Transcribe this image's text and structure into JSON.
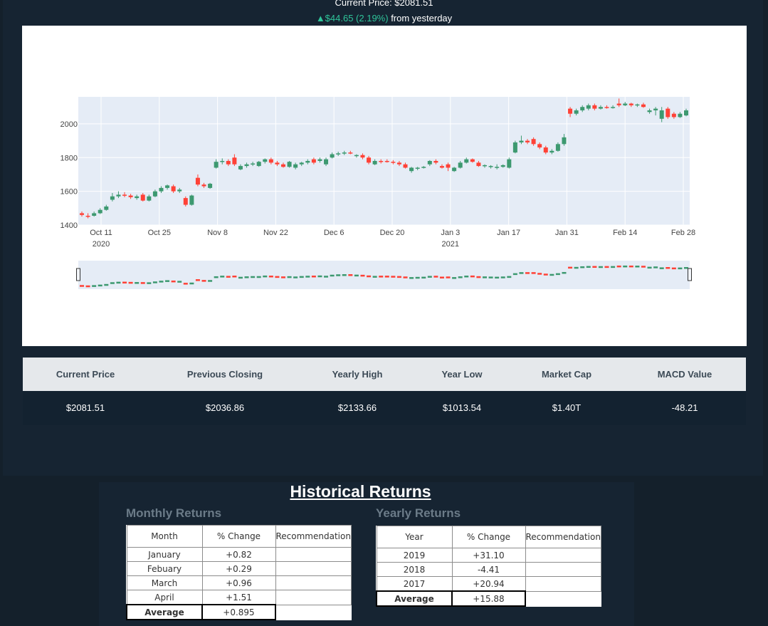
{
  "header": {
    "title": "Current Price: $2081.51",
    "change_value": "▲$44.65 (2.19%)",
    "change_suffix": " from yesterday",
    "colors": {
      "up": "#2fc49a",
      "increasing": "#3d9970",
      "decreasing": "#ff4136"
    }
  },
  "chart_data": {
    "type": "candlestick",
    "ylim": [
      1400,
      2160
    ],
    "yticks": [
      "1400",
      "1600",
      "1800",
      "2000"
    ],
    "xticks": [
      {
        "label": "Oct 11",
        "sub": "2020"
      },
      {
        "label": "Oct 25",
        "sub": ""
      },
      {
        "label": "Nov 8",
        "sub": ""
      },
      {
        "label": "Nov 22",
        "sub": ""
      },
      {
        "label": "Dec 6",
        "sub": ""
      },
      {
        "label": "Dec 20",
        "sub": ""
      },
      {
        "label": "Jan 3",
        "sub": "2021"
      },
      {
        "label": "Jan 17",
        "sub": ""
      },
      {
        "label": "Jan 31",
        "sub": ""
      },
      {
        "label": "Feb 14",
        "sub": ""
      },
      {
        "label": "Feb 28",
        "sub": ""
      }
    ],
    "candles": [
      [
        1470,
        1460,
        1480,
        1450
      ],
      [
        1455,
        1450,
        1470,
        1440
      ],
      [
        1455,
        1470,
        1480,
        1450
      ],
      [
        1470,
        1490,
        1500,
        1465
      ],
      [
        1490,
        1510,
        1520,
        1485
      ],
      [
        1550,
        1570,
        1590,
        1540
      ],
      [
        1570,
        1580,
        1600,
        1560
      ],
      [
        1580,
        1575,
        1595,
        1565
      ],
      [
        1575,
        1565,
        1585,
        1555
      ],
      [
        1560,
        1570,
        1580,
        1550
      ],
      [
        1580,
        1545,
        1590,
        1540
      ],
      [
        1545,
        1570,
        1580,
        1540
      ],
      [
        1570,
        1600,
        1610,
        1565
      ],
      [
        1600,
        1620,
        1630,
        1590
      ],
      [
        1620,
        1635,
        1640,
        1610
      ],
      [
        1630,
        1600,
        1640,
        1590
      ],
      [
        1600,
        1610,
        1620,
        1590
      ],
      [
        1560,
        1520,
        1570,
        1510
      ],
      [
        1520,
        1575,
        1580,
        1515
      ],
      [
        1680,
        1640,
        1700,
        1630
      ],
      [
        1640,
        1630,
        1650,
        1620
      ],
      [
        1620,
        1645,
        1650,
        1615
      ],
      [
        1740,
        1775,
        1790,
        1735
      ],
      [
        1775,
        1780,
        1795,
        1760
      ],
      [
        1780,
        1760,
        1790,
        1750
      ],
      [
        1800,
        1760,
        1820,
        1750
      ],
      [
        1730,
        1750,
        1760,
        1725
      ],
      [
        1750,
        1760,
        1770,
        1740
      ],
      [
        1760,
        1765,
        1775,
        1750
      ],
      [
        1750,
        1775,
        1780,
        1745
      ],
      [
        1775,
        1790,
        1795,
        1765
      ],
      [
        1790,
        1770,
        1800,
        1760
      ],
      [
        1770,
        1760,
        1780,
        1750
      ],
      [
        1760,
        1745,
        1770,
        1740
      ],
      [
        1745,
        1775,
        1780,
        1740
      ],
      [
        1740,
        1760,
        1770,
        1730
      ],
      [
        1760,
        1770,
        1775,
        1750
      ],
      [
        1770,
        1780,
        1790,
        1760
      ],
      [
        1790,
        1770,
        1800,
        1760
      ],
      [
        1780,
        1790,
        1800,
        1770
      ],
      [
        1760,
        1790,
        1800,
        1750
      ],
      [
        1800,
        1820,
        1830,
        1795
      ],
      [
        1820,
        1825,
        1835,
        1810
      ],
      [
        1825,
        1830,
        1840,
        1815
      ],
      [
        1830,
        1825,
        1840,
        1820
      ],
      [
        1810,
        1815,
        1820,
        1800
      ],
      [
        1815,
        1800,
        1825,
        1790
      ],
      [
        1800,
        1770,
        1810,
        1760
      ],
      [
        1760,
        1780,
        1790,
        1755
      ],
      [
        1780,
        1775,
        1790,
        1765
      ],
      [
        1780,
        1775,
        1790,
        1770
      ],
      [
        1775,
        1770,
        1785,
        1760
      ],
      [
        1770,
        1760,
        1780,
        1750
      ],
      [
        1760,
        1740,
        1770,
        1735
      ],
      [
        1720,
        1740,
        1745,
        1710
      ],
      [
        1735,
        1740,
        1745,
        1725
      ],
      [
        1740,
        1745,
        1750,
        1735
      ],
      [
        1760,
        1780,
        1785,
        1750
      ],
      [
        1780,
        1770,
        1790,
        1760
      ],
      [
        1750,
        1740,
        1760,
        1735
      ],
      [
        1760,
        1740,
        1770,
        1720
      ],
      [
        1720,
        1740,
        1745,
        1715
      ],
      [
        1740,
        1770,
        1780,
        1735
      ],
      [
        1770,
        1790,
        1800,
        1765
      ],
      [
        1790,
        1775,
        1795,
        1770
      ],
      [
        1770,
        1750,
        1780,
        1745
      ],
      [
        1750,
        1755,
        1760,
        1740
      ],
      [
        1745,
        1750,
        1755,
        1735
      ],
      [
        1740,
        1745,
        1760,
        1730
      ],
      [
        1745,
        1755,
        1760,
        1740
      ],
      [
        1740,
        1790,
        1800,
        1735
      ],
      [
        1830,
        1890,
        1900,
        1825
      ],
      [
        1890,
        1900,
        1930,
        1880
      ],
      [
        1900,
        1890,
        1910,
        1880
      ],
      [
        1910,
        1880,
        1920,
        1870
      ],
      [
        1880,
        1860,
        1890,
        1850
      ],
      [
        1860,
        1830,
        1870,
        1820
      ],
      [
        1830,
        1840,
        1850,
        1820
      ],
      [
        1840,
        1880,
        1890,
        1835
      ],
      [
        1880,
        1920,
        1940,
        1870
      ],
      [
        2090,
        2060,
        2100,
        2040
      ],
      [
        2060,
        2080,
        2090,
        2050
      ],
      [
        2080,
        2100,
        2110,
        2070
      ],
      [
        2090,
        2110,
        2120,
        2080
      ],
      [
        2110,
        2090,
        2120,
        2080
      ],
      [
        2090,
        2100,
        2110,
        2085
      ],
      [
        2100,
        2095,
        2110,
        2090
      ],
      [
        2095,
        2100,
        2110,
        2090
      ],
      [
        2120,
        2110,
        2150,
        2100
      ],
      [
        2110,
        2120,
        2130,
        2105
      ],
      [
        2120,
        2110,
        2125,
        2100
      ],
      [
        2110,
        2115,
        2120,
        2100
      ],
      [
        2115,
        2100,
        2125,
        2095
      ],
      [
        2070,
        2080,
        2090,
        2060
      ],
      [
        2080,
        2090,
        2100,
        2050
      ],
      [
        2030,
        2080,
        2100,
        2010
      ],
      [
        2090,
        2040,
        2100,
        2030
      ],
      [
        2060,
        2040,
        2070,
        2030
      ],
      [
        2040,
        2060,
        2070,
        2035
      ],
      [
        2050,
        2080,
        2090,
        2045
      ]
    ]
  },
  "stats": {
    "headers": [
      "Current Price",
      "Previous Closing",
      "Yearly High",
      "Year Low",
      "Market Cap",
      "MACD Value"
    ],
    "values": [
      "$2081.51",
      "$2036.86",
      "$2133.66",
      "$1013.54",
      "$1.40T",
      "-48.21"
    ]
  },
  "returns": {
    "title": "Historical Returns",
    "monthly": {
      "title": "Monthly Returns",
      "headers": [
        "Month",
        "% Change",
        "Recommendation"
      ],
      "rows": [
        [
          "January",
          "+0.82",
          ""
        ],
        [
          "Febuary",
          "+0.29",
          ""
        ],
        [
          "March",
          "+0.96",
          ""
        ],
        [
          "April",
          "+1.51",
          ""
        ]
      ],
      "average": [
        "Average",
        "+0.895"
      ]
    },
    "yearly": {
      "title": "Yearly Returns",
      "headers": [
        "Year",
        "% Change",
        "Recommendation"
      ],
      "rows": [
        [
          "2019",
          "+31.10",
          ""
        ],
        [
          "2018",
          "-4.41",
          ""
        ],
        [
          "2017",
          "+20.94",
          ""
        ]
      ],
      "average": [
        "Average",
        "+15.88"
      ]
    }
  }
}
